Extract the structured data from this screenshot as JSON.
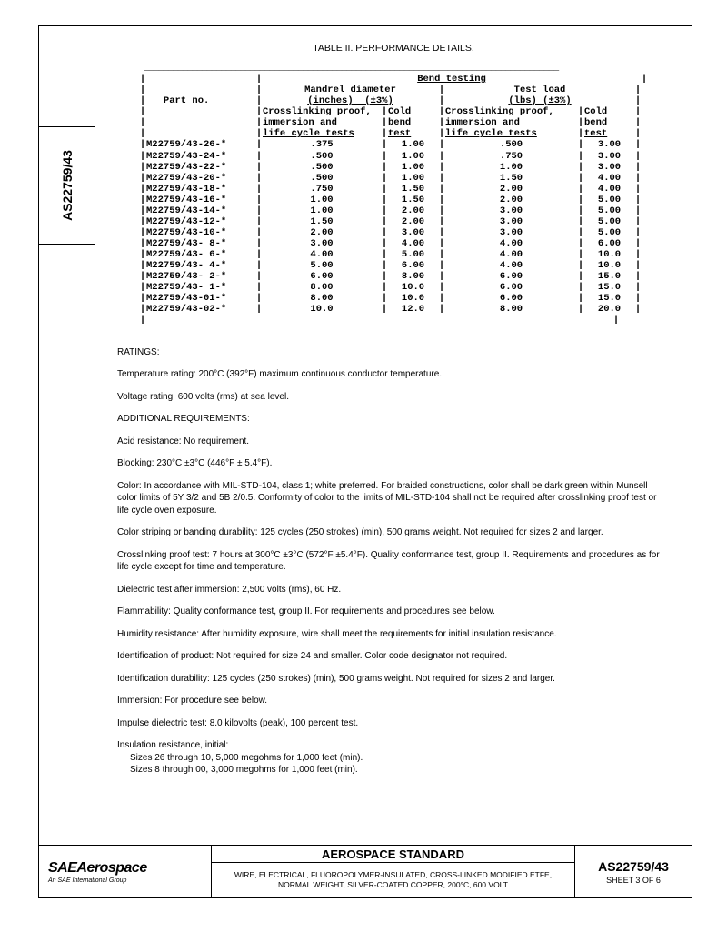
{
  "side_tab": "AS22759/43",
  "table_title": "TABLE II.  PERFORMANCE DETAILS.",
  "table": {
    "super_header": "Bend testing",
    "group_a": "Mandrel diameter (inches)  (±3%)",
    "group_b": "Test load (lbs) (±3%)",
    "col_part": "Part no.",
    "col_cross": "Crosslinking proof, immersion and life cycle tests",
    "col_cold": "Cold bend test",
    "rows": [
      {
        "part": "M22759/43-26-*",
        "a": ".375",
        "b": "1.00",
        "c": ".500",
        "d": "3.00"
      },
      {
        "part": "M22759/43-24-*",
        "a": ".500",
        "b": "1.00",
        "c": ".750",
        "d": "3.00"
      },
      {
        "part": "M22759/43-22-*",
        "a": ".500",
        "b": "1.00",
        "c": "1.00",
        "d": "3.00"
      },
      {
        "part": "M22759/43-20-*",
        "a": ".500",
        "b": "1.00",
        "c": "1.50",
        "d": "4.00"
      },
      {
        "part": "M22759/43-18-*",
        "a": ".750",
        "b": "1.50",
        "c": "2.00",
        "d": "4.00"
      },
      {
        "part": "M22759/43-16-*",
        "a": "1.00",
        "b": "1.50",
        "c": "2.00",
        "d": "5.00"
      },
      {
        "part": "M22759/43-14-*",
        "a": "1.00",
        "b": "2.00",
        "c": "3.00",
        "d": "5.00"
      },
      {
        "part": "M22759/43-12-*",
        "a": "1.50",
        "b": "2.00",
        "c": "3.00",
        "d": "5.00"
      },
      {
        "part": "M22759/43-10-*",
        "a": "2.00",
        "b": "3.00",
        "c": "3.00",
        "d": "5.00"
      },
      {
        "part": "M22759/43- 8-*",
        "a": "3.00",
        "b": "4.00",
        "c": "4.00",
        "d": "6.00"
      },
      {
        "part": "M22759/43- 6-*",
        "a": "4.00",
        "b": "5.00",
        "c": "4.00",
        "d": "10.0"
      },
      {
        "part": "M22759/43- 4-*",
        "a": "5.00",
        "b": "6.00",
        "c": "4.00",
        "d": "10.0"
      },
      {
        "part": "M22759/43- 2-*",
        "a": "6.00",
        "b": "8.00",
        "c": "6.00",
        "d": "15.0"
      },
      {
        "part": "M22759/43- 1-*",
        "a": "8.00",
        "b": "10.0",
        "c": "6.00",
        "d": "15.0"
      },
      {
        "part": "M22759/43-01-*",
        "a": "8.00",
        "b": "10.0",
        "c": "6.00",
        "d": "15.0"
      },
      {
        "part": "M22759/43-02-*",
        "a": "10.0",
        "b": "12.0",
        "c": "8.00",
        "d": "20.0"
      }
    ]
  },
  "ratings_head": "RATINGS:",
  "temp": "Temperature rating:  200°C (392°F) maximum continuous conductor temperature.",
  "voltage": "Voltage rating:  600 volts (rms) at sea level.",
  "addl_head": "ADDITIONAL REQUIREMENTS:",
  "acid": "Acid resistance:  No requirement.",
  "blocking": "Blocking:  230°C ±3°C (446°F ± 5.4°F).",
  "color": "Color:  In accordance with MIL-STD-104, class 1; white preferred.  For braided constructions, color shall be dark green within Munsell color limits of 5Y 3/2 and 5B 2/0.5.  Conformity of color to the limits of MIL-STD-104 shall not be required after crosslinking proof test or life cycle oven exposure.",
  "striping": "Color striping or banding durability:  125 cycles (250 strokes) (min), 500 grams weight.  Not required for sizes 2 and larger.",
  "crosslink": "Crosslinking proof test:  7 hours at 300°C ±3°C (572°F ±5.4°F).  Quality conformance test, group II.  Requirements and procedures as for life cycle except for time and temperature.",
  "dielectric": "Dielectric test after immersion:  2,500 volts (rms), 60 Hz.",
  "flammability": "Flammability:  Quality conformance test, group II.  For requirements and procedures see below.",
  "humidity": "Humidity resistance:  After humidity exposure, wire shall meet the requirements for initial insulation resistance.",
  "ident": "Identification of product:  Not required for size 24 and smaller.  Color code designator not required.",
  "ident_dur": "Identification durability:  125 cycles (250 strokes) (min), 500 grams weight.  Not required for sizes 2 and larger.",
  "immersion": "Immersion:  For procedure see below.",
  "impulse": "Impulse dielectric test:  8.0 kilovolts (peak), 100 percent test.",
  "insul_head": "Insulation resistance, initial:",
  "insul_a": "Sizes 26 through 10, 5,000 megohms for 1,000 feet (min).",
  "insul_b": "Sizes 8 through 00, 3,000 megohms for 1,000 feet (min).",
  "footer": {
    "logo_main": "SAE",
    "logo_aero": "Aerospace",
    "logo_sub": "An SAE International Group",
    "mid_top": "AEROSPACE STANDARD",
    "mid_bot": "WIRE, ELECTRICAL, FLUOROPOLYMER-INSULATED, CROSS-LINKED MODIFIED ETFE, NORMAL WEIGHT, SILVER-COATED COPPER, 200°C, 600 VOLT",
    "right_top": "AS22759/43",
    "right_bot": "SHEET 3 OF 6"
  }
}
